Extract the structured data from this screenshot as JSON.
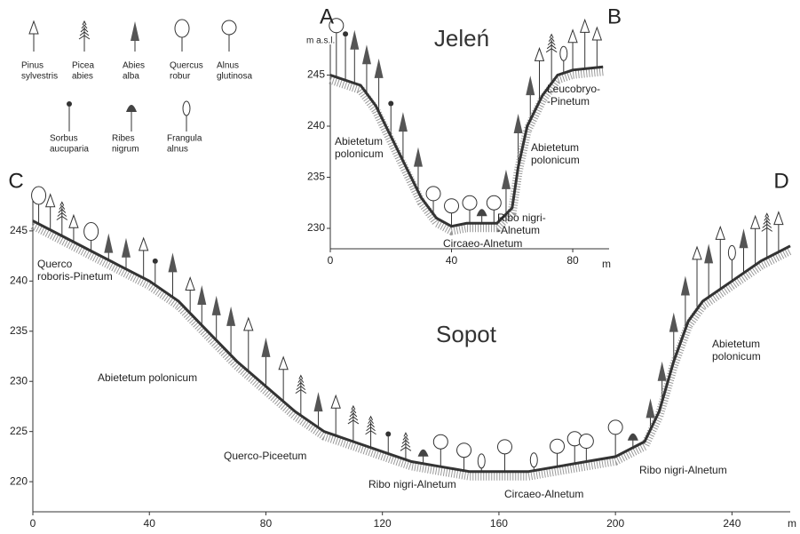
{
  "legend": [
    {
      "lines": [
        "Pinus",
        "sylvestris"
      ]
    },
    {
      "lines": [
        "Picea",
        "abies"
      ]
    },
    {
      "lines": [
        "Abies",
        "alba"
      ]
    },
    {
      "lines": [
        "Quercus",
        "robur"
      ]
    },
    {
      "lines": [
        "Alnus",
        "glutinosa"
      ]
    },
    {
      "lines": [
        "Sorbus",
        "aucuparia"
      ]
    },
    {
      "lines": [
        "Ribes",
        "nigrum"
      ]
    },
    {
      "lines": [
        "Frangula",
        "alnus"
      ]
    }
  ],
  "chart_data": [
    {
      "type": "line",
      "title": "Jeleń",
      "start_label": "A",
      "end_label": "B",
      "y_label": "m a.s.l.",
      "x_label": "m",
      "x": [
        0,
        10,
        15,
        20,
        25,
        30,
        35,
        40,
        45,
        50,
        55,
        60,
        62,
        65,
        70,
        75,
        80,
        90
      ],
      "values": [
        245,
        244,
        242,
        239,
        236,
        233,
        231,
        230.2,
        230.5,
        230.5,
        230.5,
        232,
        236,
        240,
        243,
        245,
        245.5,
        245.8
      ],
      "xlim": [
        0,
        92
      ],
      "ylim": [
        228,
        248
      ],
      "xticks": [
        0,
        40,
        80
      ],
      "yticks": [
        230,
        235,
        240,
        245
      ],
      "annotations": [
        {
          "lines": [
            "Abietetum",
            "polonicum"
          ]
        },
        {
          "lines": [
            "Leucobryo-",
            "-Pinetum"
          ]
        },
        {
          "lines": [
            "Abietetum",
            "polonicum"
          ]
        },
        {
          "lines": [
            "Ribo nigri-",
            "-Alnetum"
          ]
        },
        {
          "lines": [
            "Circaeo-Alnetum"
          ]
        }
      ]
    },
    {
      "type": "line",
      "title": "Sopot",
      "start_label": "C",
      "end_label": "D",
      "x_label": "m",
      "x": [
        0,
        10,
        20,
        30,
        40,
        50,
        60,
        70,
        80,
        90,
        100,
        110,
        120,
        130,
        140,
        150,
        160,
        170,
        180,
        190,
        200,
        210,
        215,
        220,
        225,
        230,
        240,
        250,
        260
      ],
      "values": [
        246,
        244.5,
        243,
        241.5,
        240,
        238,
        235,
        232,
        229.5,
        227,
        225,
        224,
        223,
        222,
        221.5,
        221,
        221,
        221,
        221.5,
        222,
        222.5,
        224,
        227,
        232,
        236,
        238,
        240,
        242,
        243.5
      ],
      "xlim": [
        0,
        260
      ],
      "ylim": [
        217,
        248
      ],
      "xticks": [
        0,
        40,
        80,
        120,
        160,
        200,
        240
      ],
      "yticks": [
        220,
        225,
        230,
        235,
        240,
        245
      ],
      "annotations": [
        {
          "lines": [
            "Querco",
            "roboris-Pinetum"
          ]
        },
        {
          "lines": [
            "Abietetum polonicum"
          ]
        },
        {
          "lines": [
            "Querco-Piceetum"
          ]
        },
        {
          "lines": [
            "Ribo nigri-Alnetum"
          ]
        },
        {
          "lines": [
            "Circaeo-Alnetum"
          ]
        },
        {
          "lines": [
            "Ribo nigri-Alnetum"
          ]
        },
        {
          "lines": [
            "Abietetum",
            "polonicum"
          ]
        }
      ]
    }
  ]
}
